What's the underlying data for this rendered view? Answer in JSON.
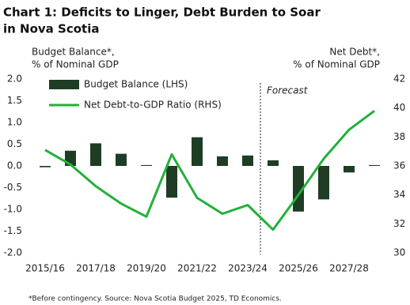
{
  "chart_data": {
    "type": "bar-line",
    "title": [
      "Chart 1: Deficits to Linger, Debt Burden to Soar",
      "in Nova Scotia"
    ],
    "y_label": [
      "Budget Balance*,",
      "% of Nominal GDP"
    ],
    "y2_label": [
      "Net Debt*,",
      "% of Nominal GDP"
    ],
    "categories": [
      "2015/16",
      null,
      "2017/18",
      null,
      "2019/20",
      null,
      "2021/22",
      null,
      "2023/24",
      null,
      "2025/26",
      null,
      "2027/28",
      null
    ],
    "series": [
      {
        "name": "Budget Balance (LHS)",
        "type": "bar",
        "color": "#1e3d24",
        "values": [
          -0.03,
          0.35,
          0.52,
          0.28,
          0.02,
          -0.73,
          0.66,
          0.22,
          0.24,
          0.13,
          -1.05,
          -0.77,
          -0.15,
          0.02
        ]
      },
      {
        "name": "Net Debt-to-GDP Ratio (RHS)",
        "type": "line",
        "axis": "y2",
        "color": "#22b03a",
        "values": [
          37.1,
          36.1,
          34.6,
          33.4,
          32.5,
          36.8,
          33.8,
          32.7,
          33.3,
          31.6,
          34.0,
          36.5,
          38.5,
          39.8
        ]
      }
    ],
    "ylim": [
      -2.0,
      2.0
    ],
    "yticks": [
      {
        "value": 2.0,
        "label": "2.0"
      },
      {
        "value": 1.5,
        "label": "1.5"
      },
      {
        "value": 1.0,
        "label": "1.0"
      },
      {
        "value": 0.5,
        "label": "0.5"
      },
      {
        "value": 0.0,
        "label": "0.0"
      },
      {
        "value": -0.5,
        "label": "-0.5"
      },
      {
        "value": -1.0,
        "label": "-1.0"
      },
      {
        "value": -1.5,
        "label": "-1.5"
      },
      {
        "value": -2.0,
        "label": "-2.0"
      }
    ],
    "y2lim": [
      30,
      42
    ],
    "y2ticks": [
      42,
      40,
      38,
      36,
      34,
      32,
      30
    ],
    "annotation": "Forecast",
    "footnote": "*Before contingency. Source: Nova Scotia Budget 2025, TD Economics."
  }
}
